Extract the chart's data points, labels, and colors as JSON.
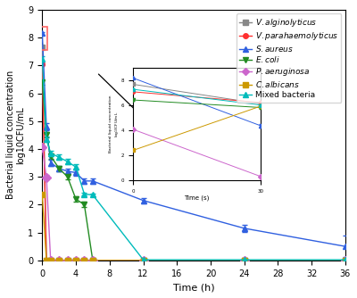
{
  "title": "",
  "xlabel": "Time (h)",
  "ylabel": "Bacterial liquid concentration\nlog10CFU/mL",
  "xlim": [
    0,
    36
  ],
  "ylim": [
    0,
    9
  ],
  "xticks": [
    0,
    4,
    8,
    12,
    16,
    20,
    24,
    28,
    32,
    36
  ],
  "yticks": [
    0,
    1,
    2,
    3,
    4,
    5,
    6,
    7,
    8,
    9
  ],
  "series": {
    "V.alginolyticus": {
      "color": "#888888",
      "marker": "s",
      "linestyle": "-",
      "times": [
        0,
        0.5,
        1,
        2,
        3,
        4,
        5,
        6,
        12,
        24,
        36
      ],
      "values": [
        7.65,
        0.0,
        0.0,
        0.0,
        0.0,
        0.0,
        0.0,
        0.0,
        0.0,
        0.0,
        0.0
      ],
      "errors": [
        0.05,
        0.0,
        0.0,
        0.0,
        0.0,
        0.0,
        0.0,
        0.0,
        0.0,
        0.0,
        0.0
      ]
    },
    "V.parahaemolyticus": {
      "color": "#FF3030",
      "marker": "o",
      "linestyle": "-",
      "times": [
        0,
        0.5,
        1,
        2,
        3,
        4,
        5,
        6,
        12,
        24,
        36
      ],
      "values": [
        7.05,
        0.0,
        0.0,
        0.0,
        0.0,
        0.0,
        0.0,
        0.0,
        0.0,
        0.0,
        0.0
      ],
      "errors": [
        0.05,
        0.0,
        0.0,
        0.0,
        0.0,
        0.0,
        0.0,
        0.0,
        0.0,
        0.0,
        0.0
      ]
    },
    "S.aureus": {
      "color": "#3060E0",
      "marker": "^",
      "linestyle": "-",
      "times": [
        0,
        0.5,
        1,
        2,
        3,
        4,
        5,
        6,
        12,
        24,
        36
      ],
      "values": [
        8.15,
        4.8,
        3.5,
        3.3,
        3.2,
        3.15,
        2.85,
        2.85,
        2.15,
        1.15,
        0.5
      ],
      "errors": [
        0.05,
        0.12,
        0.1,
        0.1,
        0.1,
        0.1,
        0.1,
        0.1,
        0.1,
        0.12,
        0.38
      ]
    },
    "E.coli": {
      "color": "#228B22",
      "marker": "v",
      "linestyle": "-",
      "times": [
        0,
        0.5,
        1,
        2,
        3,
        4,
        5,
        6,
        12,
        24,
        36
      ],
      "values": [
        6.4,
        4.5,
        3.75,
        3.3,
        3.0,
        2.2,
        2.0,
        0.0,
        0.0,
        0.0,
        0.0
      ],
      "errors": [
        0.08,
        0.1,
        0.1,
        0.1,
        0.1,
        0.1,
        0.1,
        0.0,
        0.0,
        0.0,
        0.0
      ]
    },
    "P.aeruginosa": {
      "color": "#CC66CC",
      "marker": "D",
      "linestyle": "-",
      "times": [
        0,
        0.5,
        1,
        2,
        3,
        4,
        5,
        6,
        12,
        24,
        36
      ],
      "values": [
        4.05,
        2.98,
        0.0,
        0.0,
        0.0,
        0.0,
        0.0,
        0.0,
        0.0,
        0.0,
        0.0
      ],
      "errors": [
        0.08,
        0.08,
        0.0,
        0.0,
        0.0,
        0.0,
        0.0,
        0.0,
        0.0,
        0.0,
        0.0
      ]
    },
    "C.albicans": {
      "color": "#CC9900",
      "marker": "s",
      "linestyle": "-",
      "times": [
        0,
        0.5,
        1,
        2,
        3,
        4,
        5,
        6,
        12,
        24,
        36
      ],
      "values": [
        2.38,
        0.0,
        0.0,
        0.0,
        0.0,
        0.0,
        0.0,
        0.0,
        0.0,
        0.0,
        0.0
      ],
      "errors": [
        0.05,
        0.0,
        0.0,
        0.0,
        0.0,
        0.0,
        0.0,
        0.0,
        0.0,
        0.0,
        0.0
      ]
    },
    "Mixed bacteria": {
      "color": "#00BBBB",
      "marker": "^",
      "linestyle": "-",
      "times": [
        0,
        0.5,
        1,
        2,
        3,
        4,
        5,
        6,
        12,
        24,
        36
      ],
      "values": [
        7.25,
        4.35,
        3.85,
        3.7,
        3.55,
        3.35,
        2.38,
        2.35,
        0.02,
        0.02,
        0.02
      ],
      "errors": [
        0.08,
        0.1,
        0.1,
        0.1,
        0.1,
        0.1,
        0.05,
        0.05,
        0.01,
        0.01,
        0.01
      ]
    }
  },
  "inset": {
    "xlim": [
      0,
      30
    ],
    "ylim": [
      0,
      9
    ],
    "xticks": [
      0,
      30
    ],
    "yticks": [
      0,
      2,
      4,
      6,
      8
    ],
    "xlabel": "Time (s)",
    "series": {
      "V.alginolyticus": {
        "color": "#888888",
        "marker": "s",
        "times": [
          0,
          30
        ],
        "values": [
          7.65,
          6.1
        ],
        "errors": [
          0.05,
          0.1
        ]
      },
      "V.parahaemolyticus": {
        "color": "#FF3030",
        "marker": "o",
        "times": [
          0,
          30
        ],
        "values": [
          7.05,
          6.2
        ],
        "errors": [
          0.05,
          0.1
        ]
      },
      "S.aureus": {
        "color": "#3060E0",
        "marker": "^",
        "times": [
          0,
          30
        ],
        "values": [
          8.15,
          4.35
        ],
        "errors": [
          0.05,
          0.12
        ]
      },
      "E.coli": {
        "color": "#228B22",
        "marker": "v",
        "times": [
          0,
          30
        ],
        "values": [
          6.4,
          5.8
        ],
        "errors": [
          0.08,
          0.1
        ]
      },
      "P.aeruginosa": {
        "color": "#CC66CC",
        "marker": "D",
        "times": [
          0,
          30
        ],
        "values": [
          4.05,
          0.3
        ],
        "errors": [
          0.08,
          0.05
        ]
      },
      "C.albicans": {
        "color": "#CC9900",
        "marker": "s",
        "times": [
          0,
          30
        ],
        "values": [
          2.38,
          5.9
        ],
        "errors": [
          0.05,
          0.1
        ]
      },
      "Mixed bacteria": {
        "color": "#00BBBB",
        "marker": "^",
        "times": [
          0,
          30
        ],
        "values": [
          7.25,
          6.0
        ],
        "errors": [
          0.08,
          0.1
        ]
      }
    }
  },
  "rect_color": "#FF6666",
  "legend_fontsize": 6.5,
  "axis_fontsize": 8,
  "tick_fontsize": 7
}
